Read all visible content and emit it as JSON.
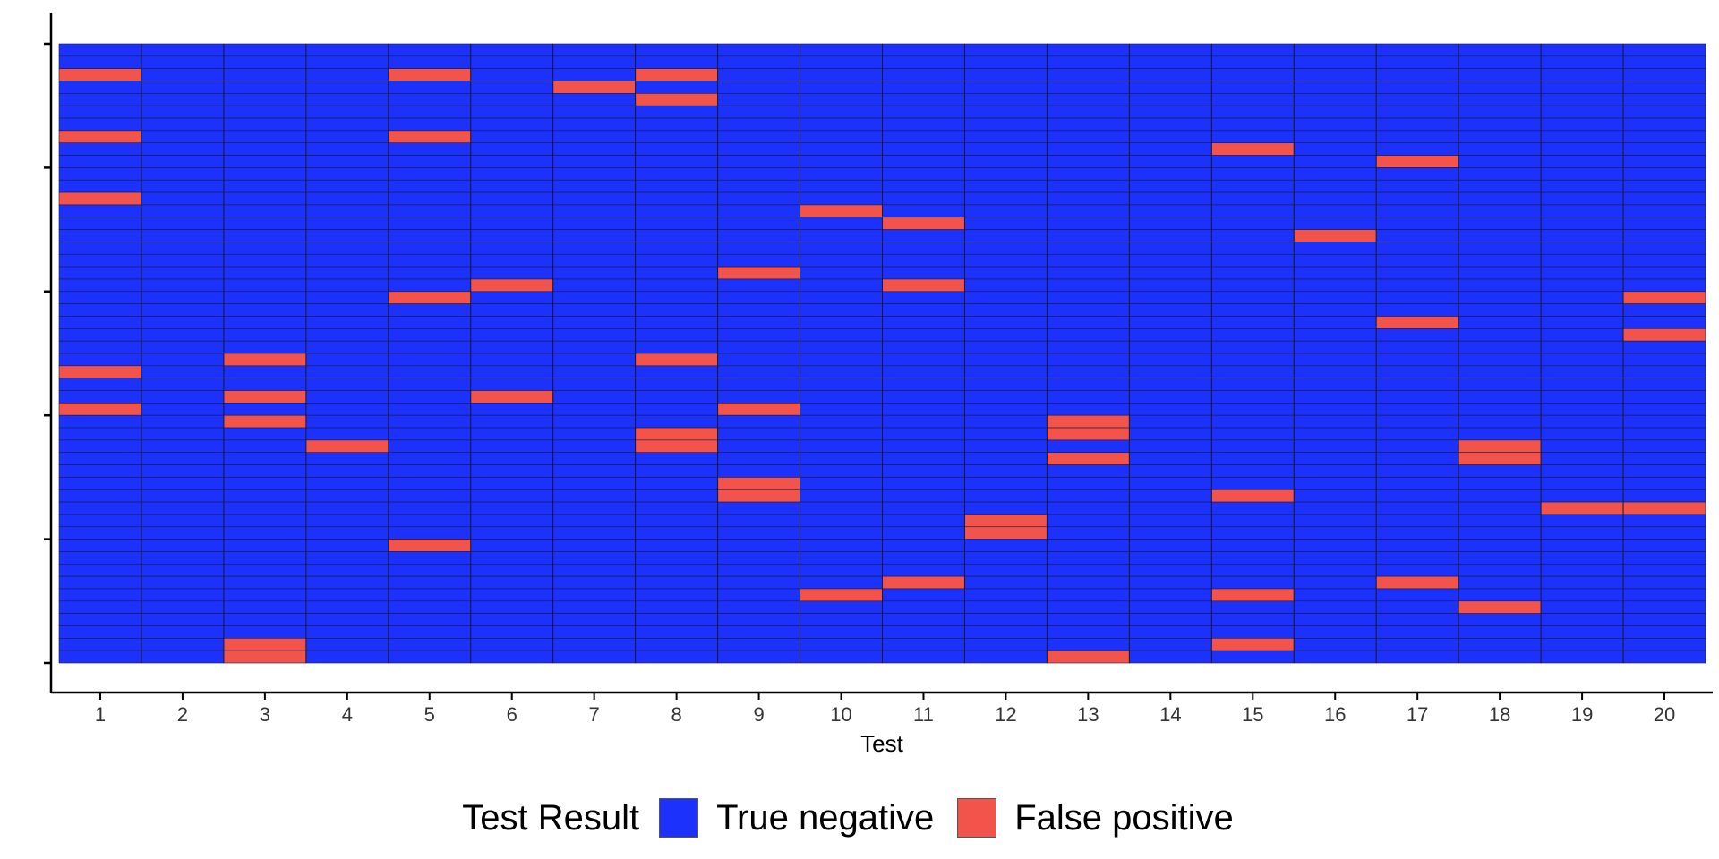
{
  "chart_data": {
    "type": "heatmap",
    "title": "",
    "xlabel": "Test",
    "ylabel": "",
    "x_categories": [
      "1",
      "2",
      "3",
      "4",
      "5",
      "6",
      "7",
      "8",
      "9",
      "10",
      "11",
      "12",
      "13",
      "14",
      "15",
      "16",
      "17",
      "18",
      "19",
      "20"
    ],
    "n_rows": 50,
    "y_ticks_rows": [
      1,
      11,
      21,
      31,
      41,
      51
    ],
    "row_order": "row 1 at top",
    "legend": {
      "title": "Test Result",
      "position": "bottom",
      "entries": [
        {
          "label": "True negative",
          "color": "#1c31fb"
        },
        {
          "label": "False positive",
          "color": "#f2544b"
        }
      ]
    },
    "false_positives": [
      {
        "test": 1,
        "rows": [
          3,
          8,
          13,
          27,
          30
        ]
      },
      {
        "test": 2,
        "rows": []
      },
      {
        "test": 3,
        "rows": [
          26,
          29,
          31,
          49,
          50
        ]
      },
      {
        "test": 4,
        "rows": [
          33
        ]
      },
      {
        "test": 5,
        "rows": [
          3,
          8,
          21,
          41
        ]
      },
      {
        "test": 6,
        "rows": [
          20,
          29
        ]
      },
      {
        "test": 7,
        "rows": [
          4
        ]
      },
      {
        "test": 8,
        "rows": [
          3,
          5,
          26,
          32,
          33
        ]
      },
      {
        "test": 9,
        "rows": [
          19,
          30,
          36,
          37
        ]
      },
      {
        "test": 10,
        "rows": [
          14,
          45
        ]
      },
      {
        "test": 11,
        "rows": [
          15,
          20,
          44
        ]
      },
      {
        "test": 12,
        "rows": [
          39,
          40
        ]
      },
      {
        "test": 13,
        "rows": [
          31,
          32,
          34,
          50
        ]
      },
      {
        "test": 14,
        "rows": []
      },
      {
        "test": 15,
        "rows": [
          9,
          37,
          45,
          49
        ]
      },
      {
        "test": 16,
        "rows": [
          16
        ]
      },
      {
        "test": 17,
        "rows": [
          10,
          23,
          44
        ]
      },
      {
        "test": 18,
        "rows": [
          33,
          34,
          46
        ]
      },
      {
        "test": 19,
        "rows": [
          38
        ]
      },
      {
        "test": 20,
        "rows": [
          21,
          24,
          38
        ]
      }
    ]
  }
}
